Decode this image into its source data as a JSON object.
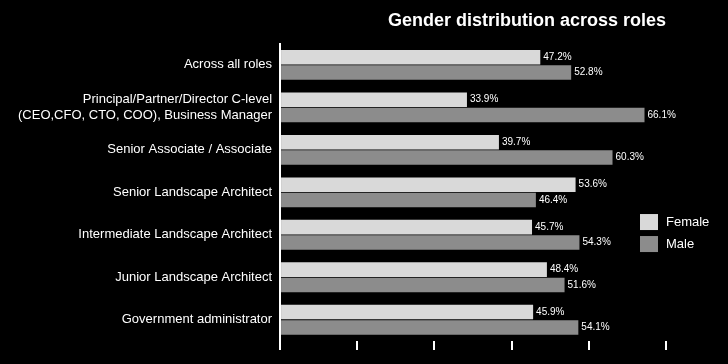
{
  "chart_data": {
    "type": "bar",
    "title": "Gender distribution across roles",
    "orientation": "horizontal",
    "categories": [
      "Across all roles",
      "Principal/Partner/Director C-level\n(CEO,CFO, CTO, COO), Business Manager",
      "Senior Associate / Associate",
      "Senior Landscape Architect",
      "Intermediate Landscape Architect",
      "Junior Landscape Architect",
      "Government administrator"
    ],
    "series": [
      {
        "name": "Female",
        "color": "#d9d9d9",
        "values": [
          47.2,
          33.9,
          39.7,
          53.6,
          45.7,
          48.4,
          45.9
        ],
        "value_labels": [
          "47.2%",
          "33.9%",
          "39.7%",
          "53.6%",
          "45.7%",
          "48.4%",
          "45.9%"
        ]
      },
      {
        "name": "Male",
        "color": "#8c8c8c",
        "values": [
          52.8,
          66.1,
          60.3,
          46.4,
          54.3,
          51.6,
          54.1
        ],
        "value_labels": [
          "52.8%",
          "66.1%",
          "60.3%",
          "46.4%",
          "54.3%",
          "51.6%",
          "54.1%"
        ]
      }
    ],
    "xlim": [
      0,
      70
    ],
    "xticks": [
      0,
      14,
      28,
      42,
      56,
      70
    ],
    "grid": false,
    "legend": "right",
    "data_labels": true,
    "tick_labels": "y"
  }
}
